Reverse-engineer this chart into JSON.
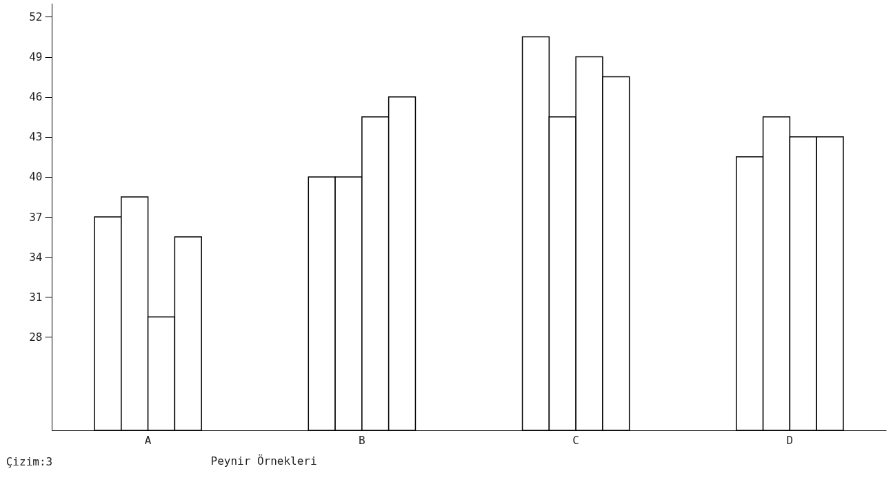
{
  "chart_data": {
    "type": "bar",
    "xlabel": "Peynir  Örnekleri",
    "annotations": [
      "Çizim:3"
    ],
    "categories": [
      "A",
      "B",
      "C",
      "D"
    ],
    "series": [
      {
        "color": "#ffffff",
        "values": [
          37,
          40,
          50.5,
          41.5
        ]
      },
      {
        "color": "#ffffff",
        "values": [
          38.5,
          40,
          44.5,
          44.5
        ]
      },
      {
        "color": "#ffffff",
        "values": [
          29.5,
          44.5,
          49,
          43
        ]
      },
      {
        "color": "#ffffff",
        "values": [
          35.5,
          46,
          47.5,
          43
        ]
      }
    ],
    "ylim": [
      21,
      53
    ],
    "yticks": [
      28,
      31,
      34,
      37,
      40,
      43,
      46,
      49,
      52
    ],
    "grid": false
  }
}
